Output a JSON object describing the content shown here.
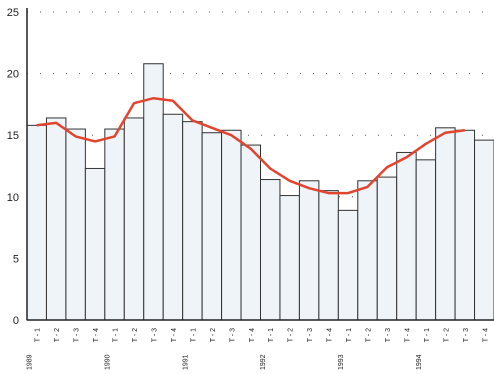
{
  "chart_data": {
    "type": "bar",
    "categories": [
      "T - 1",
      "T - 2",
      "T - 3",
      "T - 4",
      "T - 1",
      "T - 2",
      "T - 3",
      "T - 4",
      "T - 1",
      "T - 2",
      "T - 3",
      "T - 4",
      "T - 1",
      "T - 2",
      "T - 3",
      "T - 4",
      "T - 1",
      "T - 2",
      "T - 3",
      "T - 4",
      "T - 1",
      "T - 2",
      "T - 3",
      "T - 4"
    ],
    "years": [
      "1989",
      null,
      null,
      null,
      "1990",
      null,
      null,
      null,
      "1991",
      null,
      null,
      null,
      "1992",
      null,
      null,
      null,
      "1993",
      null,
      null,
      null,
      "1994",
      null,
      null,
      null
    ],
    "values": [
      15.8,
      16.4,
      15.5,
      12.3,
      15.5,
      16.4,
      20.8,
      16.7,
      16.1,
      15.2,
      15.4,
      14.2,
      11.4,
      10.1,
      11.3,
      10.5,
      8.9,
      11.3,
      11.6,
      13.6,
      13.0,
      15.6,
      15.4,
      14.6
    ],
    "trend": [
      15.8,
      16.0,
      14.9,
      14.5,
      14.9,
      17.6,
      18.0,
      17.8,
      16.2,
      15.6,
      15.0,
      13.9,
      12.3,
      11.3,
      10.7,
      10.3,
      10.3,
      10.8,
      12.4,
      13.2,
      14.3,
      15.2,
      15.4,
      null
    ],
    "color": "#eef4f8",
    "line_color": "#e2452f",
    "ylim": [
      0,
      25
    ],
    "yticks": [
      0,
      5,
      10,
      15,
      20,
      25
    ],
    "grid": true
  }
}
